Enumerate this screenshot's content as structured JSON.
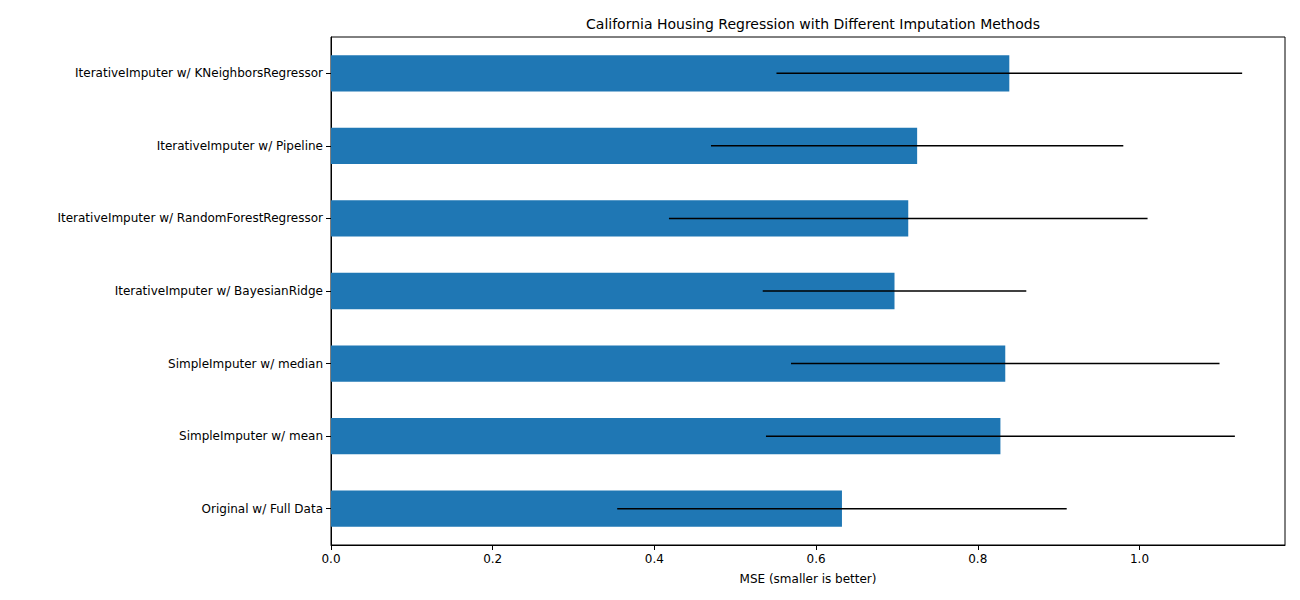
{
  "chart_data": {
    "type": "bar",
    "orientation": "horizontal",
    "title": "California Housing Regression with Different Imputation Methods",
    "xlabel": "MSE (smaller is better)",
    "categories": [
      "Original w/ Full Data",
      "SimpleImputer w/ mean",
      "SimpleImputer w/ median",
      "IterativeImputer w/ BayesianRidge",
      "IterativeImputer w/ RandomForestRegressor",
      "IterativeImputer w/ Pipeline",
      "IterativeImputer w/ KNeighborsRegressor"
    ],
    "values": [
      0.632,
      0.828,
      0.834,
      0.697,
      0.714,
      0.725,
      0.839
    ],
    "errors": [
      0.278,
      0.29,
      0.265,
      0.163,
      0.296,
      0.255,
      0.288
    ],
    "color": "#1f77b4",
    "xlim": [
      0,
      1.18
    ],
    "xticks": [
      {
        "value": 0,
        "label": "0.0"
      },
      0.2,
      0.4,
      0.6,
      0.8,
      {
        "value": 1,
        "label": "1.0"
      }
    ],
    "grid": false
  }
}
